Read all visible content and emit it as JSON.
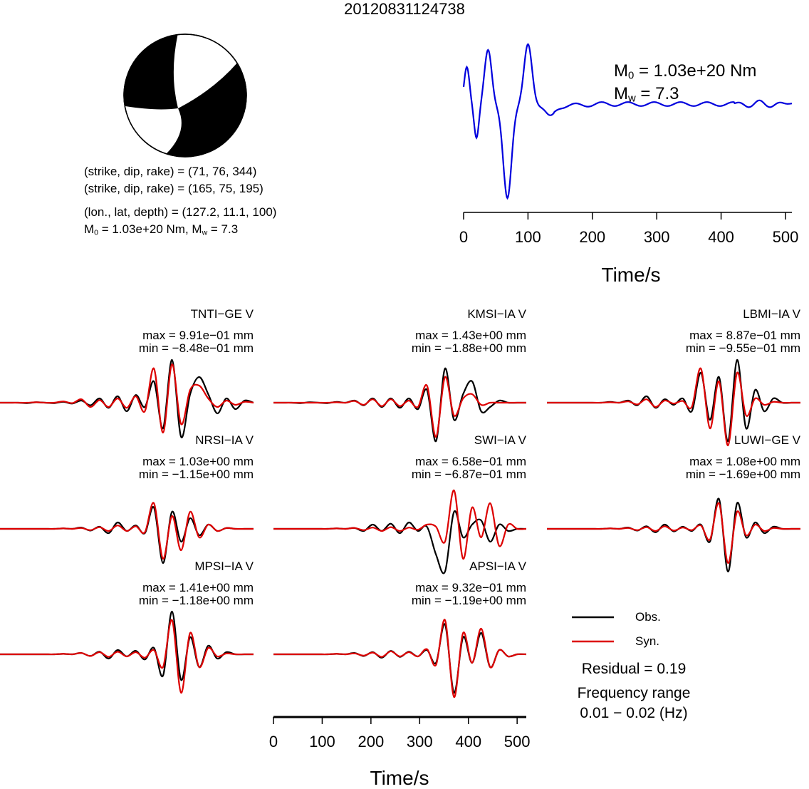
{
  "title": "20120831124738",
  "beachball": {
    "colors": {
      "fill": "#000000",
      "background": "#ffffff"
    }
  },
  "info": {
    "plane1": "(strike, dip, rake) = (71, 76, 344)",
    "plane2": "(strike, dip, rake) = (165, 75, 195)",
    "location": "(lon., lat, depth) = (127.2, 11.1, 100)",
    "m0_prefix": "M",
    "m0_sub": "0",
    "m0_rest": " = 1.03e+20 Nm, M",
    "mw_sub": "w",
    "mw_rest": " = 7.3"
  },
  "stf": {
    "m0_main": "M",
    "m0_sub": "0",
    "m0_value": " = 1.03e+20 Nm",
    "mw_main": "M",
    "mw_sub": "w",
    "mw_value": " = 7.3",
    "xlabel": "Time/s",
    "xticks": [
      0,
      100,
      200,
      300,
      400,
      500
    ],
    "xlim": [
      0,
      510
    ],
    "color": "#0000dd"
  },
  "chart_data": {
    "type": "line",
    "traces": [
      {
        "station": "TNTI−GE V",
        "max": "max = 9.91e−01 mm",
        "min": "min = −8.48e−01 mm",
        "obs": [
          0,
          0,
          0,
          -0.01,
          0.01,
          0,
          -0.01,
          0.02,
          -0.02,
          0.05,
          -0.06,
          0.1,
          -0.12,
          0.15,
          -0.2,
          0.18,
          -0.1,
          0.5,
          -0.6,
          1.0,
          -0.8,
          0.2,
          0.6,
          0.2,
          -0.25,
          0.1,
          -0.15,
          0.05,
          0
        ],
        "syn": [
          0,
          0,
          0,
          0,
          0.01,
          0,
          0,
          0.03,
          -0.01,
          0.08,
          -0.1,
          0.06,
          -0.1,
          0.1,
          -0.12,
          0.15,
          -0.2,
          0.8,
          -0.7,
          0.9,
          -0.5,
          0.3,
          0.4,
          0.1,
          -0.1,
          0.05,
          -0.05,
          0.02,
          0
        ]
      },
      {
        "station": "KMSI−IA V",
        "max": "max = 1.43e+00 mm",
        "min": "min = −1.88e+00 mm",
        "obs": [
          0,
          0,
          0,
          -0.01,
          0.01,
          0,
          -0.01,
          0.02,
          0,
          0.05,
          -0.06,
          0.1,
          -0.1,
          0.1,
          -0.12,
          0.1,
          -0.15,
          0.3,
          -0.9,
          0.8,
          -0.4,
          0.2,
          0.5,
          -0.2,
          -0.1,
          0.05,
          0,
          0,
          0
        ],
        "syn": [
          0,
          0,
          0,
          0,
          0,
          0,
          0,
          0.01,
          0,
          0.04,
          -0.05,
          0.08,
          -0.08,
          0.08,
          -0.08,
          0.05,
          -0.1,
          0.4,
          -0.8,
          0.6,
          -0.3,
          0.1,
          0.2,
          -0.05,
          0,
          0,
          0,
          0,
          0
        ]
      },
      {
        "station": "LBMI−IA V",
        "max": "max = 8.87e−01 mm",
        "min": "min = −9.55e−01 mm",
        "obs": [
          0,
          0,
          0,
          0,
          0,
          0,
          0,
          0.02,
          0,
          0.05,
          -0.06,
          0.15,
          -0.12,
          0.08,
          -0.05,
          0.1,
          -0.2,
          0.7,
          -0.4,
          0.6,
          -0.9,
          1.0,
          -0.6,
          0.3,
          -0.2,
          0.1,
          0,
          0,
          0
        ],
        "syn": [
          0,
          0,
          0,
          0,
          0,
          0,
          0,
          0.01,
          0,
          0.03,
          -0.04,
          0.08,
          -0.1,
          0.05,
          -0.02,
          0.04,
          -0.1,
          0.8,
          -0.6,
          0.5,
          -1.0,
          0.7,
          -0.3,
          0.1,
          -0.05,
          0.02,
          0,
          0,
          0
        ]
      },
      {
        "station": "NRSI−IA V",
        "max": "max = 1.03e+00 mm",
        "min": "min = −1.15e+00 mm",
        "obs": [
          0,
          0,
          0,
          0,
          0,
          0,
          0,
          0.01,
          0,
          0.03,
          -0.04,
          0.05,
          -0.1,
          0.15,
          -0.05,
          0.08,
          -0.1,
          0.5,
          -0.8,
          0.4,
          -0.3,
          0.25,
          -0.15,
          0.1,
          -0.05,
          0.02,
          0,
          0,
          0
        ],
        "syn": [
          0,
          0,
          0,
          0,
          0,
          0,
          0,
          0.01,
          0,
          0.02,
          -0.03,
          0.04,
          -0.05,
          0.08,
          -0.05,
          0.06,
          -0.08,
          0.6,
          -0.7,
          0.3,
          -0.5,
          0.4,
          -0.2,
          0.1,
          -0.05,
          0.02,
          0,
          0,
          0
        ]
      },
      {
        "station": "SWI−IA V",
        "max": "max = 6.58e−01 mm",
        "min": "min = −6.87e−01 mm",
        "obs": [
          0,
          0,
          0,
          0,
          0,
          0,
          0,
          0.01,
          0,
          0.02,
          -0.05,
          0.1,
          -0.05,
          0.12,
          -0.1,
          0.15,
          -0.05,
          0.05,
          -0.6,
          -1.0,
          0.4,
          -0.2,
          0.1,
          0.2,
          -0.3,
          0.1,
          -0.05,
          0,
          0
        ],
        "syn": [
          0,
          0,
          0,
          0,
          0,
          0,
          0,
          0.01,
          0,
          0.02,
          -0.03,
          0.03,
          -0.05,
          0.04,
          -0.05,
          0.03,
          -0.02,
          0.1,
          0.05,
          -0.3,
          0.9,
          -0.7,
          0.5,
          -0.2,
          0.6,
          -0.4,
          0.1,
          0,
          0
        ]
      },
      {
        "station": "LUWI−GE V",
        "max": "max = 1.08e+00 mm",
        "min": "min = −1.69e+00 mm",
        "obs": [
          0,
          0,
          0,
          0,
          0,
          0,
          0,
          0.01,
          0,
          0.03,
          -0.04,
          0.06,
          -0.08,
          0.1,
          -0.06,
          0.05,
          -0.05,
          0.1,
          -0.3,
          0.7,
          -1.0,
          0.6,
          -0.2,
          0.15,
          -0.1,
          0.05,
          0,
          0,
          0
        ],
        "syn": [
          0,
          0,
          0,
          0,
          0,
          0,
          0,
          0.01,
          0,
          0.02,
          -0.03,
          0.04,
          -0.05,
          0.06,
          -0.04,
          0.03,
          -0.03,
          0.08,
          -0.25,
          0.6,
          -0.8,
          0.4,
          -0.15,
          0.1,
          -0.05,
          0.02,
          0,
          0,
          0
        ]
      },
      {
        "station": "MPSI−IA V",
        "max": "max = 1.41e+00 mm",
        "min": "min = −1.18e+00 mm",
        "obs": [
          0,
          0,
          0,
          0,
          0,
          0,
          0,
          0.01,
          0,
          0.03,
          -0.04,
          0.06,
          -0.1,
          0.1,
          -0.05,
          0.08,
          -0.12,
          0.15,
          -0.5,
          1.0,
          -0.6,
          0.4,
          -0.3,
          0.2,
          -0.1,
          0.05,
          0,
          0,
          0
        ],
        "syn": [
          0,
          0,
          0,
          0,
          0,
          0,
          0,
          0.01,
          0,
          0.03,
          -0.04,
          0.05,
          -0.06,
          0.06,
          -0.05,
          0.05,
          -0.08,
          0.1,
          -0.3,
          0.8,
          -0.9,
          0.5,
          -0.3,
          0.15,
          -0.05,
          0.02,
          0,
          0,
          0
        ]
      },
      {
        "station": "APSI−IA V",
        "max": "max = 9.32e−01 mm",
        "min": "min = −1.19e+00 mm",
        "obs": [
          0,
          0,
          0,
          0,
          0,
          0,
          0,
          0.01,
          0,
          0.03,
          -0.04,
          0.05,
          -0.08,
          0.08,
          -0.06,
          0.06,
          -0.05,
          0.1,
          -0.2,
          0.7,
          -0.9,
          0.4,
          -0.2,
          0.5,
          -0.3,
          0.1,
          -0.05,
          0,
          0
        ],
        "syn": [
          0,
          0,
          0,
          0,
          0,
          0,
          0,
          0.01,
          0,
          0.02,
          -0.03,
          0.04,
          -0.06,
          0.07,
          -0.05,
          0.05,
          -0.05,
          0.12,
          -0.25,
          0.8,
          -1.0,
          0.5,
          -0.2,
          0.6,
          -0.3,
          0.1,
          -0.05,
          0,
          0
        ]
      }
    ],
    "xlabel": "Time/s",
    "xticks": [
      0,
      100,
      200,
      300,
      400,
      500
    ],
    "xlim": [
      0,
      510
    ],
    "legend": [
      {
        "name": "Obs.",
        "color": "#000000"
      },
      {
        "name": "Syn.",
        "color": "#dd0000"
      }
    ],
    "legend_position": "bottom-right"
  },
  "residual": "Residual = 0.19",
  "freq_label": "Frequency range",
  "freq_value": "0.01 − 0.02 (Hz)"
}
